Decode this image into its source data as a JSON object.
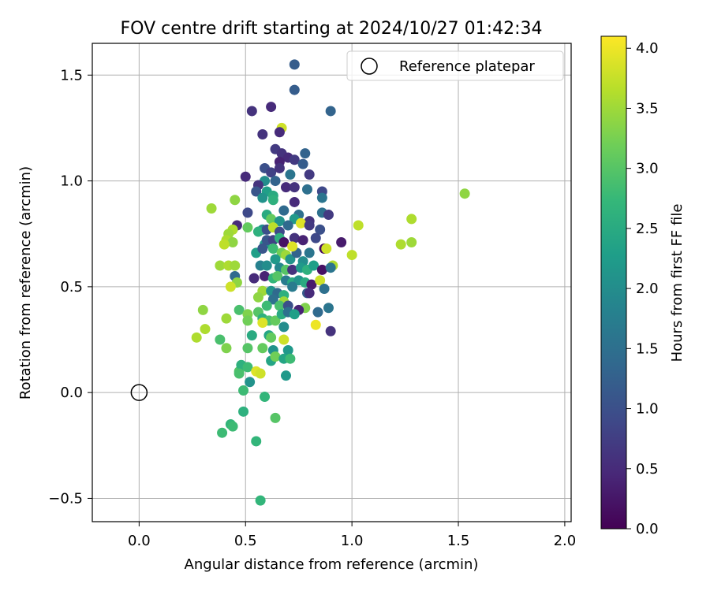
{
  "chart_data": {
    "type": "scatter",
    "title": "FOV centre drift starting at 2024/10/27 01:42:34",
    "xlabel": "Angular distance from reference (arcmin)",
    "ylabel": "Rotation from reference (arcmin)",
    "xlim": [
      -0.22,
      2.03
    ],
    "ylim": [
      -0.61,
      1.65
    ],
    "xticks": [
      0.0,
      0.5,
      1.0,
      1.5,
      2.0
    ],
    "xtick_labels": [
      "0.0",
      "0.5",
      "1.0",
      "1.5",
      "2.0"
    ],
    "yticks": [
      -0.5,
      0.0,
      0.5,
      1.0,
      1.5
    ],
    "ytick_labels": [
      "−0.5",
      "0.0",
      "0.5",
      "1.0",
      "1.5"
    ],
    "grid": true,
    "legend": {
      "position": "top-right",
      "entries": [
        "Reference platepar"
      ]
    },
    "reference": {
      "name": "Reference platepar",
      "x": 0.0,
      "y": 0.0
    },
    "colorbar": {
      "label": "Hours from first FF file",
      "range": [
        0.0,
        4.1
      ],
      "ticks": [
        0.0,
        0.5,
        1.0,
        1.5,
        2.0,
        2.5,
        3.0,
        3.5,
        4.0
      ],
      "tick_labels": [
        "0.0",
        "0.5",
        "1.0",
        "1.5",
        "2.0",
        "2.5",
        "3.0",
        "3.5",
        "4.0"
      ],
      "colormap": [
        "#440154",
        "#482878",
        "#3e4a89",
        "#31688e",
        "#26828e",
        "#1f9e89",
        "#35b779",
        "#6ece58",
        "#b5de2b",
        "#fde725"
      ]
    },
    "points": [
      {
        "x": 0.73,
        "y": 1.55,
        "c": 1.2
      },
      {
        "x": 0.73,
        "y": 1.43,
        "c": 1.2
      },
      {
        "x": 0.53,
        "y": 1.33,
        "c": 0.6
      },
      {
        "x": 0.62,
        "y": 1.35,
        "c": 0.5
      },
      {
        "x": 0.9,
        "y": 1.33,
        "c": 1.3
      },
      {
        "x": 0.67,
        "y": 1.25,
        "c": 3.8
      },
      {
        "x": 0.58,
        "y": 1.22,
        "c": 0.6
      },
      {
        "x": 0.66,
        "y": 1.23,
        "c": 0.5
      },
      {
        "x": 0.64,
        "y": 1.15,
        "c": 0.7
      },
      {
        "x": 0.67,
        "y": 1.13,
        "c": 0.6
      },
      {
        "x": 0.7,
        "y": 1.11,
        "c": 0.5
      },
      {
        "x": 0.73,
        "y": 1.1,
        "c": 0.7
      },
      {
        "x": 0.78,
        "y": 1.13,
        "c": 1.3
      },
      {
        "x": 0.66,
        "y": 1.09,
        "c": 0.4
      },
      {
        "x": 0.77,
        "y": 1.08,
        "c": 1.2
      },
      {
        "x": 0.5,
        "y": 1.02,
        "c": 0.5
      },
      {
        "x": 0.59,
        "y": 1.06,
        "c": 1.0
      },
      {
        "x": 0.62,
        "y": 1.04,
        "c": 0.8
      },
      {
        "x": 0.66,
        "y": 1.06,
        "c": 0.6
      },
      {
        "x": 0.71,
        "y": 1.03,
        "c": 1.6
      },
      {
        "x": 0.8,
        "y": 1.03,
        "c": 0.7
      },
      {
        "x": 0.64,
        "y": 1.0,
        "c": 1.3
      },
      {
        "x": 0.59,
        "y": 1.0,
        "c": 2.0
      },
      {
        "x": 0.56,
        "y": 0.98,
        "c": 0.6
      },
      {
        "x": 0.55,
        "y": 0.95,
        "c": 1.1
      },
      {
        "x": 0.6,
        "y": 0.95,
        "c": 2.3
      },
      {
        "x": 0.63,
        "y": 0.93,
        "c": 2.5
      },
      {
        "x": 0.69,
        "y": 0.97,
        "c": 0.5
      },
      {
        "x": 0.73,
        "y": 0.97,
        "c": 0.6
      },
      {
        "x": 0.79,
        "y": 0.96,
        "c": 1.5
      },
      {
        "x": 0.86,
        "y": 0.95,
        "c": 0.9
      },
      {
        "x": 0.45,
        "y": 0.91,
        "c": 3.4
      },
      {
        "x": 0.63,
        "y": 0.91,
        "c": 2.6
      },
      {
        "x": 0.58,
        "y": 0.92,
        "c": 2.1
      },
      {
        "x": 0.73,
        "y": 0.9,
        "c": 0.5
      },
      {
        "x": 0.86,
        "y": 0.92,
        "c": 1.6
      },
      {
        "x": 0.34,
        "y": 0.87,
        "c": 3.5
      },
      {
        "x": 0.51,
        "y": 0.85,
        "c": 0.9
      },
      {
        "x": 0.68,
        "y": 0.86,
        "c": 1.4
      },
      {
        "x": 0.86,
        "y": 0.85,
        "c": 1.5
      },
      {
        "x": 0.89,
        "y": 0.84,
        "c": 0.7
      },
      {
        "x": 0.6,
        "y": 0.84,
        "c": 2.5
      },
      {
        "x": 0.62,
        "y": 0.82,
        "c": 3.1
      },
      {
        "x": 0.66,
        "y": 0.81,
        "c": 2.1
      },
      {
        "x": 0.75,
        "y": 0.84,
        "c": 1.5
      },
      {
        "x": 0.73,
        "y": 0.82,
        "c": 2.2
      },
      {
        "x": 0.8,
        "y": 0.81,
        "c": 0.6
      },
      {
        "x": 0.46,
        "y": 0.79,
        "c": 0.5
      },
      {
        "x": 0.44,
        "y": 0.77,
        "c": 3.6
      },
      {
        "x": 0.51,
        "y": 0.78,
        "c": 3.1
      },
      {
        "x": 0.58,
        "y": 0.77,
        "c": 2.0
      },
      {
        "x": 0.56,
        "y": 0.76,
        "c": 2.6
      },
      {
        "x": 0.6,
        "y": 0.77,
        "c": 1.0
      },
      {
        "x": 0.63,
        "y": 0.78,
        "c": 3.7
      },
      {
        "x": 0.66,
        "y": 0.76,
        "c": 0.9
      },
      {
        "x": 0.7,
        "y": 0.79,
        "c": 1.4
      },
      {
        "x": 0.76,
        "y": 0.8,
        "c": 3.9
      },
      {
        "x": 0.8,
        "y": 0.79,
        "c": 0.7
      },
      {
        "x": 0.85,
        "y": 0.77,
        "c": 1.0
      },
      {
        "x": 1.03,
        "y": 0.79,
        "c": 3.7
      },
      {
        "x": 1.28,
        "y": 0.82,
        "c": 3.6
      },
      {
        "x": 1.53,
        "y": 0.94,
        "c": 3.4
      },
      {
        "x": 0.42,
        "y": 0.75,
        "c": 3.5
      },
      {
        "x": 0.41,
        "y": 0.72,
        "c": 3.6
      },
      {
        "x": 0.44,
        "y": 0.71,
        "c": 3.4
      },
      {
        "x": 0.4,
        "y": 0.7,
        "c": 3.7
      },
      {
        "x": 0.59,
        "y": 0.7,
        "c": 2.2
      },
      {
        "x": 0.6,
        "y": 0.72,
        "c": 1.1
      },
      {
        "x": 0.63,
        "y": 0.72,
        "c": 0.8
      },
      {
        "x": 0.66,
        "y": 0.73,
        "c": 2.6
      },
      {
        "x": 0.68,
        "y": 0.71,
        "c": 0.2
      },
      {
        "x": 0.73,
        "y": 0.73,
        "c": 0.6
      },
      {
        "x": 0.77,
        "y": 0.72,
        "c": 0.4
      },
      {
        "x": 0.83,
        "y": 0.73,
        "c": 0.9
      },
      {
        "x": 0.95,
        "y": 0.71,
        "c": 0.3
      },
      {
        "x": 1.23,
        "y": 0.7,
        "c": 3.6
      },
      {
        "x": 1.28,
        "y": 0.71,
        "c": 3.5
      },
      {
        "x": 0.55,
        "y": 0.66,
        "c": 2.3
      },
      {
        "x": 0.58,
        "y": 0.68,
        "c": 1.1
      },
      {
        "x": 0.63,
        "y": 0.68,
        "c": 2.8
      },
      {
        "x": 0.67,
        "y": 0.66,
        "c": 3.2
      },
      {
        "x": 0.69,
        "y": 0.65,
        "c": 3.5
      },
      {
        "x": 0.71,
        "y": 0.63,
        "c": 2.1
      },
      {
        "x": 0.74,
        "y": 0.66,
        "c": 1.3
      },
      {
        "x": 0.77,
        "y": 0.62,
        "c": 2.0
      },
      {
        "x": 0.8,
        "y": 0.66,
        "c": 1.6
      },
      {
        "x": 0.87,
        "y": 0.68,
        "c": 0.1
      },
      {
        "x": 0.88,
        "y": 0.68,
        "c": 3.8
      },
      {
        "x": 0.72,
        "y": 0.69,
        "c": 3.9
      },
      {
        "x": 0.64,
        "y": 0.63,
        "c": 2.2
      },
      {
        "x": 0.38,
        "y": 0.6,
        "c": 3.5
      },
      {
        "x": 0.42,
        "y": 0.6,
        "c": 3.6
      },
      {
        "x": 0.45,
        "y": 0.6,
        "c": 3.5
      },
      {
        "x": 0.57,
        "y": 0.6,
        "c": 1.8
      },
      {
        "x": 0.6,
        "y": 0.6,
        "c": 2.0
      },
      {
        "x": 0.66,
        "y": 0.59,
        "c": 1.9
      },
      {
        "x": 0.69,
        "y": 0.58,
        "c": 3.0
      },
      {
        "x": 0.72,
        "y": 0.58,
        "c": 0.6
      },
      {
        "x": 0.76,
        "y": 0.59,
        "c": 2.2
      },
      {
        "x": 0.79,
        "y": 0.58,
        "c": 2.6
      },
      {
        "x": 0.82,
        "y": 0.6,
        "c": 2.3
      },
      {
        "x": 0.86,
        "y": 0.58,
        "c": 0.2
      },
      {
        "x": 0.91,
        "y": 0.6,
        "c": 3.6
      },
      {
        "x": 0.9,
        "y": 0.59,
        "c": 1.6
      },
      {
        "x": 1.0,
        "y": 0.65,
        "c": 3.7
      },
      {
        "x": 0.45,
        "y": 0.55,
        "c": 1.4
      },
      {
        "x": 0.46,
        "y": 0.52,
        "c": 3.4
      },
      {
        "x": 0.54,
        "y": 0.54,
        "c": 0.5
      },
      {
        "x": 0.59,
        "y": 0.55,
        "c": 0.4
      },
      {
        "x": 0.63,
        "y": 0.54,
        "c": 2.7
      },
      {
        "x": 0.65,
        "y": 0.55,
        "c": 3.0
      },
      {
        "x": 0.69,
        "y": 0.53,
        "c": 1.7
      },
      {
        "x": 0.72,
        "y": 0.52,
        "c": 2.5
      },
      {
        "x": 0.75,
        "y": 0.53,
        "c": 2.1
      },
      {
        "x": 0.78,
        "y": 0.52,
        "c": 2.5
      },
      {
        "x": 0.81,
        "y": 0.51,
        "c": 0.3
      },
      {
        "x": 0.85,
        "y": 0.53,
        "c": 3.8
      },
      {
        "x": 0.87,
        "y": 0.49,
        "c": 1.5
      },
      {
        "x": 0.43,
        "y": 0.5,
        "c": 3.8
      },
      {
        "x": 0.58,
        "y": 0.48,
        "c": 3.5
      },
      {
        "x": 0.56,
        "y": 0.45,
        "c": 3.4
      },
      {
        "x": 0.62,
        "y": 0.48,
        "c": 2.1
      },
      {
        "x": 0.65,
        "y": 0.47,
        "c": 1.4
      },
      {
        "x": 0.68,
        "y": 0.46,
        "c": 2.6
      },
      {
        "x": 0.72,
        "y": 0.5,
        "c": 1.7
      },
      {
        "x": 0.79,
        "y": 0.47,
        "c": 1.2
      },
      {
        "x": 0.8,
        "y": 0.47,
        "c": 0.5
      },
      {
        "x": 0.63,
        "y": 0.44,
        "c": 1.5
      },
      {
        "x": 0.68,
        "y": 0.43,
        "c": 3.5
      },
      {
        "x": 0.6,
        "y": 0.41,
        "c": 2.8
      },
      {
        "x": 0.66,
        "y": 0.41,
        "c": 2.9
      },
      {
        "x": 0.7,
        "y": 0.41,
        "c": 1.0
      },
      {
        "x": 0.78,
        "y": 0.4,
        "c": 3.3
      },
      {
        "x": 0.89,
        "y": 0.4,
        "c": 1.6
      },
      {
        "x": 0.3,
        "y": 0.39,
        "c": 3.4
      },
      {
        "x": 0.47,
        "y": 0.39,
        "c": 2.9
      },
      {
        "x": 0.51,
        "y": 0.37,
        "c": 3.3
      },
      {
        "x": 0.56,
        "y": 0.38,
        "c": 3.0
      },
      {
        "x": 0.58,
        "y": 0.35,
        "c": 2.6
      },
      {
        "x": 0.61,
        "y": 0.34,
        "c": 2.9
      },
      {
        "x": 0.64,
        "y": 0.34,
        "c": 3.1
      },
      {
        "x": 0.67,
        "y": 0.37,
        "c": 2.5
      },
      {
        "x": 0.7,
        "y": 0.38,
        "c": 1.5
      },
      {
        "x": 0.75,
        "y": 0.39,
        "c": 0.4
      },
      {
        "x": 0.73,
        "y": 0.37,
        "c": 2.3
      },
      {
        "x": 0.84,
        "y": 0.38,
        "c": 1.4
      },
      {
        "x": 0.41,
        "y": 0.35,
        "c": 3.5
      },
      {
        "x": 0.51,
        "y": 0.34,
        "c": 3.2
      },
      {
        "x": 0.58,
        "y": 0.33,
        "c": 3.9
      },
      {
        "x": 0.68,
        "y": 0.31,
        "c": 2.0
      },
      {
        "x": 0.83,
        "y": 0.32,
        "c": 4.0
      },
      {
        "x": 0.9,
        "y": 0.29,
        "c": 0.6
      },
      {
        "x": 0.31,
        "y": 0.3,
        "c": 3.6
      },
      {
        "x": 0.27,
        "y": 0.26,
        "c": 3.6
      },
      {
        "x": 0.53,
        "y": 0.27,
        "c": 2.5
      },
      {
        "x": 0.61,
        "y": 0.27,
        "c": 2.4
      },
      {
        "x": 0.62,
        "y": 0.26,
        "c": 3.1
      },
      {
        "x": 0.68,
        "y": 0.25,
        "c": 3.8
      },
      {
        "x": 0.38,
        "y": 0.25,
        "c": 2.9
      },
      {
        "x": 0.41,
        "y": 0.21,
        "c": 3.3
      },
      {
        "x": 0.51,
        "y": 0.21,
        "c": 3.0
      },
      {
        "x": 0.58,
        "y": 0.21,
        "c": 3.1
      },
      {
        "x": 0.63,
        "y": 0.2,
        "c": 2.1
      },
      {
        "x": 0.7,
        "y": 0.2,
        "c": 2.2
      },
      {
        "x": 0.62,
        "y": 0.15,
        "c": 2.4
      },
      {
        "x": 0.64,
        "y": 0.17,
        "c": 3.2
      },
      {
        "x": 0.68,
        "y": 0.16,
        "c": 2.4
      },
      {
        "x": 0.71,
        "y": 0.16,
        "c": 2.8
      },
      {
        "x": 0.47,
        "y": 0.1,
        "c": 3.0
      },
      {
        "x": 0.48,
        "y": 0.13,
        "c": 2.6
      },
      {
        "x": 0.51,
        "y": 0.12,
        "c": 2.8
      },
      {
        "x": 0.55,
        "y": 0.1,
        "c": 3.9
      },
      {
        "x": 0.57,
        "y": 0.09,
        "c": 3.8
      },
      {
        "x": 0.69,
        "y": 0.08,
        "c": 2.2
      },
      {
        "x": 0.47,
        "y": 0.09,
        "c": 2.9
      },
      {
        "x": 0.49,
        "y": 0.01,
        "c": 2.8
      },
      {
        "x": 0.52,
        "y": 0.05,
        "c": 2.1
      },
      {
        "x": 0.59,
        "y": -0.02,
        "c": 2.7
      },
      {
        "x": 0.49,
        "y": -0.09,
        "c": 2.6
      },
      {
        "x": 0.64,
        "y": -0.12,
        "c": 3.0
      },
      {
        "x": 0.43,
        "y": -0.15,
        "c": 2.7
      },
      {
        "x": 0.44,
        "y": -0.16,
        "c": 2.8
      },
      {
        "x": 0.39,
        "y": -0.19,
        "c": 2.8
      },
      {
        "x": 0.55,
        "y": -0.23,
        "c": 2.7
      },
      {
        "x": 0.57,
        "y": -0.51,
        "c": 2.7
      }
    ]
  }
}
